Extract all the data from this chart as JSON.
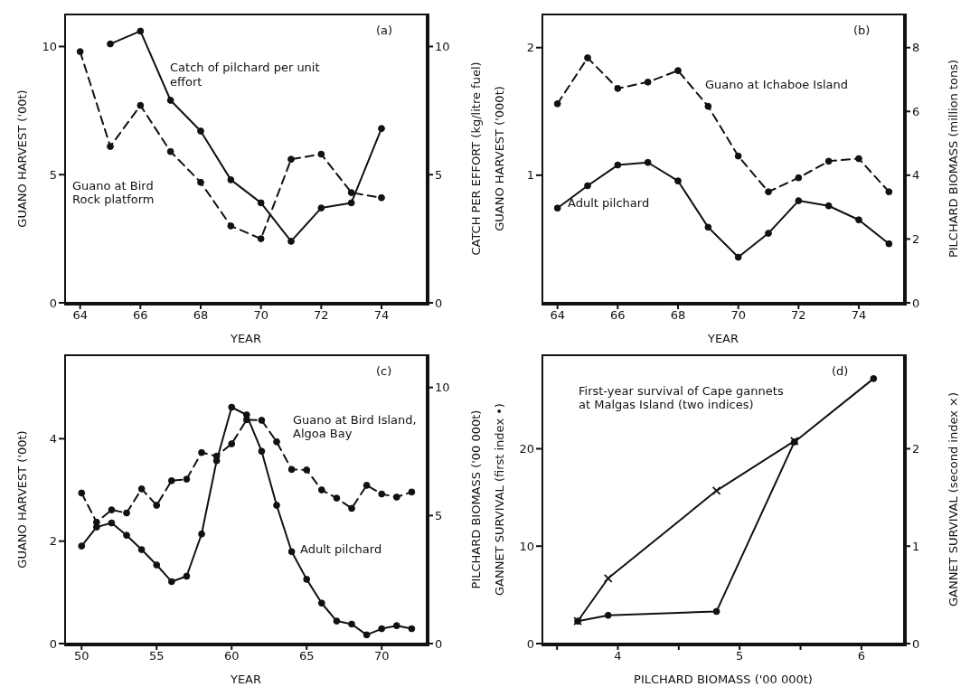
{
  "chart_data": [
    {
      "type": "line",
      "annotations": [
        "(a)"
      ],
      "xlabel": "YEAR",
      "ylabel": "GUANO HARVEST ('00t)",
      "y2label": "CATCH PER EFFORT (kg/litre fuel)",
      "x": [
        64,
        65,
        66,
        67,
        68,
        69,
        70,
        71,
        72,
        73,
        74
      ],
      "xlim": [
        63.5,
        75.5
      ],
      "xticks": [
        64,
        66,
        68,
        70,
        72,
        74
      ],
      "ylim": [
        0,
        11.25
      ],
      "yticks": [
        0,
        5,
        10
      ],
      "y2lim": [
        0,
        11.25
      ],
      "y2ticks": [
        0,
        5,
        10
      ],
      "marker": "circle",
      "series": [
        {
          "name": "Catch of pilchard per unit effort",
          "color": "#111111",
          "axis": "y2",
          "line_style": "solid",
          "values": [
            null,
            10.1,
            10.6,
            7.9,
            6.7,
            4.8,
            3.9,
            2.4,
            3.7,
            3.9,
            6.8
          ]
        },
        {
          "name": "Guano at Bird Rock platform",
          "color": "#111111",
          "line_style": "dashed",
          "values": [
            9.8,
            6.1,
            7.7,
            5.9,
            4.7,
            3.0,
            2.5,
            5.6,
            5.8,
            4.3,
            4.1
          ]
        }
      ]
    },
    {
      "type": "line",
      "annotations": [
        "(b)"
      ],
      "xlabel": "YEAR",
      "ylabel": "GUANO HARVEST ('000t)",
      "y2label": "PILCHARD BIOMASS (million tons)",
      "x": [
        64,
        65,
        66,
        67,
        68,
        69,
        70,
        71,
        72,
        73,
        74,
        75
      ],
      "xlim": [
        63.5,
        75.5
      ],
      "xticks": [
        64,
        66,
        68,
        70,
        72,
        74
      ],
      "ylim": [
        0,
        2.26
      ],
      "yticks": [
        1,
        2
      ],
      "y2lim": [
        0,
        9.04
      ],
      "y2ticks": [
        0,
        2,
        4,
        6,
        8
      ],
      "marker": "circle",
      "series": [
        {
          "name": "Guano at Ichaboe Island",
          "color": "#111111",
          "line_style": "dashed",
          "values": [
            1.56,
            1.92,
            1.68,
            1.73,
            1.82,
            1.54,
            1.15,
            0.87,
            0.98,
            1.11,
            1.13,
            0.87
          ]
        },
        {
          "name": "Adult pilchard",
          "color": "#111111",
          "axis": "y2",
          "line_style": "solid",
          "values": [
            2.97,
            3.67,
            4.32,
            4.4,
            3.82,
            2.37,
            1.43,
            2.18,
            3.2,
            3.04,
            2.6,
            1.85
          ]
        }
      ]
    },
    {
      "type": "line",
      "annotations": [
        "(c)"
      ],
      "xlabel": "YEAR",
      "ylabel": "GUANO HARVEST ('00t)",
      "y2label": "PILCHARD BIOMASS ('00 000t)",
      "x": [
        50,
        51,
        52,
        53,
        54,
        55,
        56,
        57,
        58,
        59,
        60,
        61,
        62,
        63,
        64,
        65,
        66,
        67,
        68,
        69,
        70,
        71,
        72
      ],
      "xlim": [
        48.9,
        73
      ],
      "xticks": [
        50,
        55,
        60,
        65,
        70
      ],
      "ylim": [
        0,
        5.63
      ],
      "yticks": [
        0,
        2,
        4
      ],
      "y2lim": [
        0,
        11.26
      ],
      "y2ticks": [
        0,
        5,
        10
      ],
      "marker": "circle",
      "series": [
        {
          "name": "Guano at Bird Island, Algoa Bay",
          "color": "#111111",
          "line_style": "dashed",
          "values": [
            2.94,
            2.37,
            2.61,
            2.55,
            3.02,
            2.7,
            3.18,
            3.21,
            3.73,
            3.66,
            3.9,
            4.37,
            4.36,
            3.94,
            3.4,
            3.39,
            3.0,
            2.84,
            2.64,
            3.09,
            2.92,
            2.86,
            2.96
          ]
        },
        {
          "name": "Adult pilchard",
          "color": "#111111",
          "axis": "y2",
          "line_style": "solid",
          "values": [
            3.81,
            4.55,
            4.71,
            4.23,
            3.67,
            3.07,
            2.42,
            2.63,
            4.28,
            7.14,
            9.23,
            8.93,
            7.51,
            5.4,
            3.59,
            2.51,
            1.58,
            0.88,
            0.76,
            0.34,
            0.58,
            0.7,
            0.58
          ]
        }
      ]
    },
    {
      "type": "line",
      "annotations": [
        "(d)",
        "First-year survival of Cape gannets at Malgas Island (two indices)"
      ],
      "xlabel": "PILCHARD BIOMASS ('00 000t)",
      "ylabel": "GANNET SURVIVAL (first index •)",
      "y2label": "GANNET SURVIVAL (second index ×)",
      "xlim": [
        3.38,
        6.35
      ],
      "xticks": [
        {
          "value": 3.5,
          "label": null
        },
        4,
        {
          "value": 4.5,
          "label": null
        },
        5,
        {
          "value": 5.5,
          "label": null
        },
        6
      ],
      "ylim": [
        0,
        29.6
      ],
      "yticks": [
        0,
        10,
        20
      ],
      "y2lim": [
        0,
        2.96
      ],
      "y2ticks": [
        0,
        1,
        2
      ],
      "series": [
        {
          "color": "#111111",
          "marker": "circle",
          "line_style": "solid",
          "x": [
            3.67,
            3.92,
            4.81,
            5.45,
            6.1
          ],
          "values": [
            2.3,
            2.9,
            3.3,
            20.7,
            27.2
          ]
        },
        {
          "color": "#111111",
          "marker": "cross",
          "axis": "y2",
          "line_style": "solid",
          "x": [
            3.67,
            3.92,
            4.81,
            5.45
          ],
          "values": [
            0.23,
            0.67,
            1.57,
            2.08
          ]
        }
      ]
    }
  ]
}
